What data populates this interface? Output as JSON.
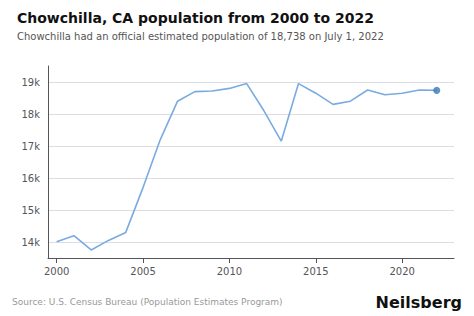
{
  "chart_data": {
    "type": "line",
    "title": "Chowchilla, CA population from 2000 to 2022",
    "subtitle": "Chowchilla had an official estimated population of 18,738 on July 1, 2022",
    "annotations": [
      "Source: U.S. Census Bureau (Population Estimates Program)",
      "Neilsberg"
    ],
    "x": [
      2000,
      2001,
      2002,
      2003,
      2004,
      2005,
      2006,
      2007,
      2008,
      2009,
      2010,
      2011,
      2012,
      2013,
      2014,
      2015,
      2016,
      2017,
      2018,
      2019,
      2020,
      2021,
      2022
    ],
    "series": [
      {
        "type": "line",
        "color": "#7aabe0",
        "values": [
          14008,
          14196,
          13752,
          14050,
          14300,
          15700,
          17200,
          18400,
          18700,
          18720,
          18800,
          18950,
          18100,
          17150,
          18950,
          18650,
          18300,
          18400,
          18750,
          18600,
          18650,
          18750,
          18738
        ]
      },
      {
        "type": "scatter",
        "color": "#3a78b5",
        "marker": "circle",
        "x": [
          2022
        ],
        "values": [
          18738
        ]
      }
    ],
    "xlim": [
      1999.5,
      2023.0
    ],
    "xticks": [
      2000,
      2005,
      2010,
      2015,
      2020
    ],
    "ylim": [
      13500,
      19500
    ],
    "yticks": [
      {
        "value": 14000,
        "label": "14k"
      },
      {
        "value": 15000,
        "label": "15k"
      },
      {
        "value": 16000,
        "label": "16k"
      },
      {
        "value": 17000,
        "label": "17k"
      },
      {
        "value": 18000,
        "label": "18k"
      },
      {
        "value": 19000,
        "label": "19k"
      }
    ],
    "grid": "y"
  }
}
